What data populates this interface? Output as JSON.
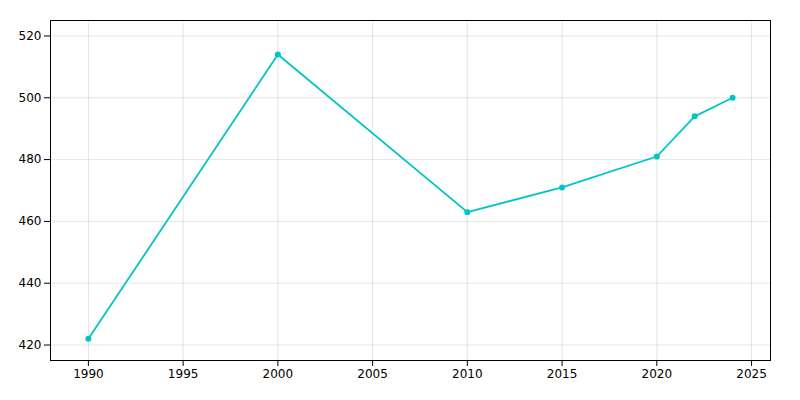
{
  "chart_data": {
    "type": "line",
    "x": [
      1990,
      2000,
      2010,
      2015,
      2020,
      2022,
      2024
    ],
    "values": [
      422,
      514,
      463,
      471,
      481,
      494,
      500
    ],
    "color": "#00C5C8",
    "marker": "circle",
    "xlim": [
      1988,
      2026
    ],
    "ylim": [
      415,
      525
    ],
    "xticks": [
      1990,
      1995,
      2000,
      2005,
      2010,
      2015,
      2020,
      2025
    ],
    "yticks": [
      420,
      440,
      460,
      480,
      500,
      520
    ],
    "grid": true
  }
}
